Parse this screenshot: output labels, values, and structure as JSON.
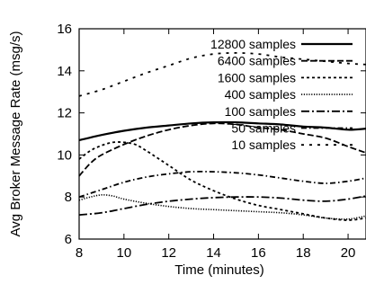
{
  "chart_data": {
    "type": "line",
    "title": "",
    "xlabel": "Time (minutes)",
    "ylabel": "Avg Broker Message Rate (msg/s)",
    "xlim": [
      8,
      20.8
    ],
    "ylim": [
      6,
      16
    ],
    "xticks": [
      8,
      10,
      12,
      14,
      16,
      18,
      20
    ],
    "yticks": [
      6,
      8,
      10,
      12,
      14,
      16
    ],
    "grid": false,
    "legend_position": "top-right",
    "series": [
      {
        "name": "12800 samples",
        "style": "solid-thick",
        "x": [
          8,
          9,
          10,
          11,
          12,
          13,
          14,
          15,
          16,
          17,
          18,
          19,
          20,
          20.8
        ],
        "y": [
          10.7,
          10.95,
          11.15,
          11.3,
          11.4,
          11.5,
          11.55,
          11.55,
          11.5,
          11.45,
          11.35,
          11.3,
          11.2,
          11.25
        ]
      },
      {
        "name": "6400 samples",
        "style": "dashed-long",
        "x": [
          8,
          8.5,
          9,
          10,
          11,
          12,
          13,
          14,
          15,
          16,
          17,
          18,
          19,
          20,
          20.8
        ],
        "y": [
          9.0,
          9.6,
          10.0,
          10.5,
          10.9,
          11.2,
          11.4,
          11.5,
          11.45,
          11.3,
          11.2,
          11.0,
          10.8,
          10.4,
          10.1
        ]
      },
      {
        "name": "1600 samples",
        "style": "dashed-short",
        "x": [
          8,
          8.5,
          9,
          9.5,
          10,
          10.5,
          11,
          12,
          13,
          14,
          15,
          16,
          17,
          18,
          19,
          20,
          20.8
        ],
        "y": [
          9.8,
          10.2,
          10.45,
          10.6,
          10.6,
          10.5,
          10.2,
          9.5,
          8.8,
          8.3,
          7.9,
          7.6,
          7.4,
          7.2,
          7.0,
          6.9,
          7.0
        ]
      },
      {
        "name": "400 samples",
        "style": "dotted",
        "x": [
          8,
          8.5,
          9,
          9.5,
          10,
          11,
          12,
          13,
          14,
          15,
          16,
          17,
          18,
          19,
          20,
          20.8
        ],
        "y": [
          7.85,
          8.0,
          8.1,
          8.05,
          7.9,
          7.7,
          7.55,
          7.45,
          7.4,
          7.35,
          7.3,
          7.25,
          7.15,
          7.0,
          6.95,
          7.1
        ]
      },
      {
        "name": "100 samples",
        "style": "dash-dot",
        "x": [
          8,
          9,
          10,
          11,
          12,
          13,
          14,
          15,
          16,
          17,
          18,
          19,
          20,
          20.8
        ],
        "y": [
          7.15,
          7.25,
          7.45,
          7.65,
          7.8,
          7.9,
          7.97,
          8.0,
          8.0,
          7.95,
          7.85,
          7.8,
          7.9,
          8.05
        ]
      },
      {
        "name": "50 samples",
        "style": "dash-dot-long",
        "x": [
          8,
          9,
          10,
          11,
          12,
          13,
          14,
          15,
          16,
          17,
          18,
          19,
          20,
          20.8
        ],
        "y": [
          8.0,
          8.35,
          8.7,
          8.95,
          9.1,
          9.2,
          9.2,
          9.15,
          9.05,
          8.9,
          8.75,
          8.65,
          8.75,
          8.9
        ]
      },
      {
        "name": "10 samples",
        "style": "dashed-sparse",
        "x": [
          8,
          9,
          10,
          11,
          12,
          13,
          14,
          15,
          16,
          17,
          18,
          19,
          20,
          20.8
        ],
        "y": [
          12.8,
          13.1,
          13.5,
          13.9,
          14.25,
          14.6,
          14.8,
          14.85,
          14.8,
          14.65,
          14.55,
          14.45,
          14.35,
          14.3
        ]
      }
    ]
  }
}
